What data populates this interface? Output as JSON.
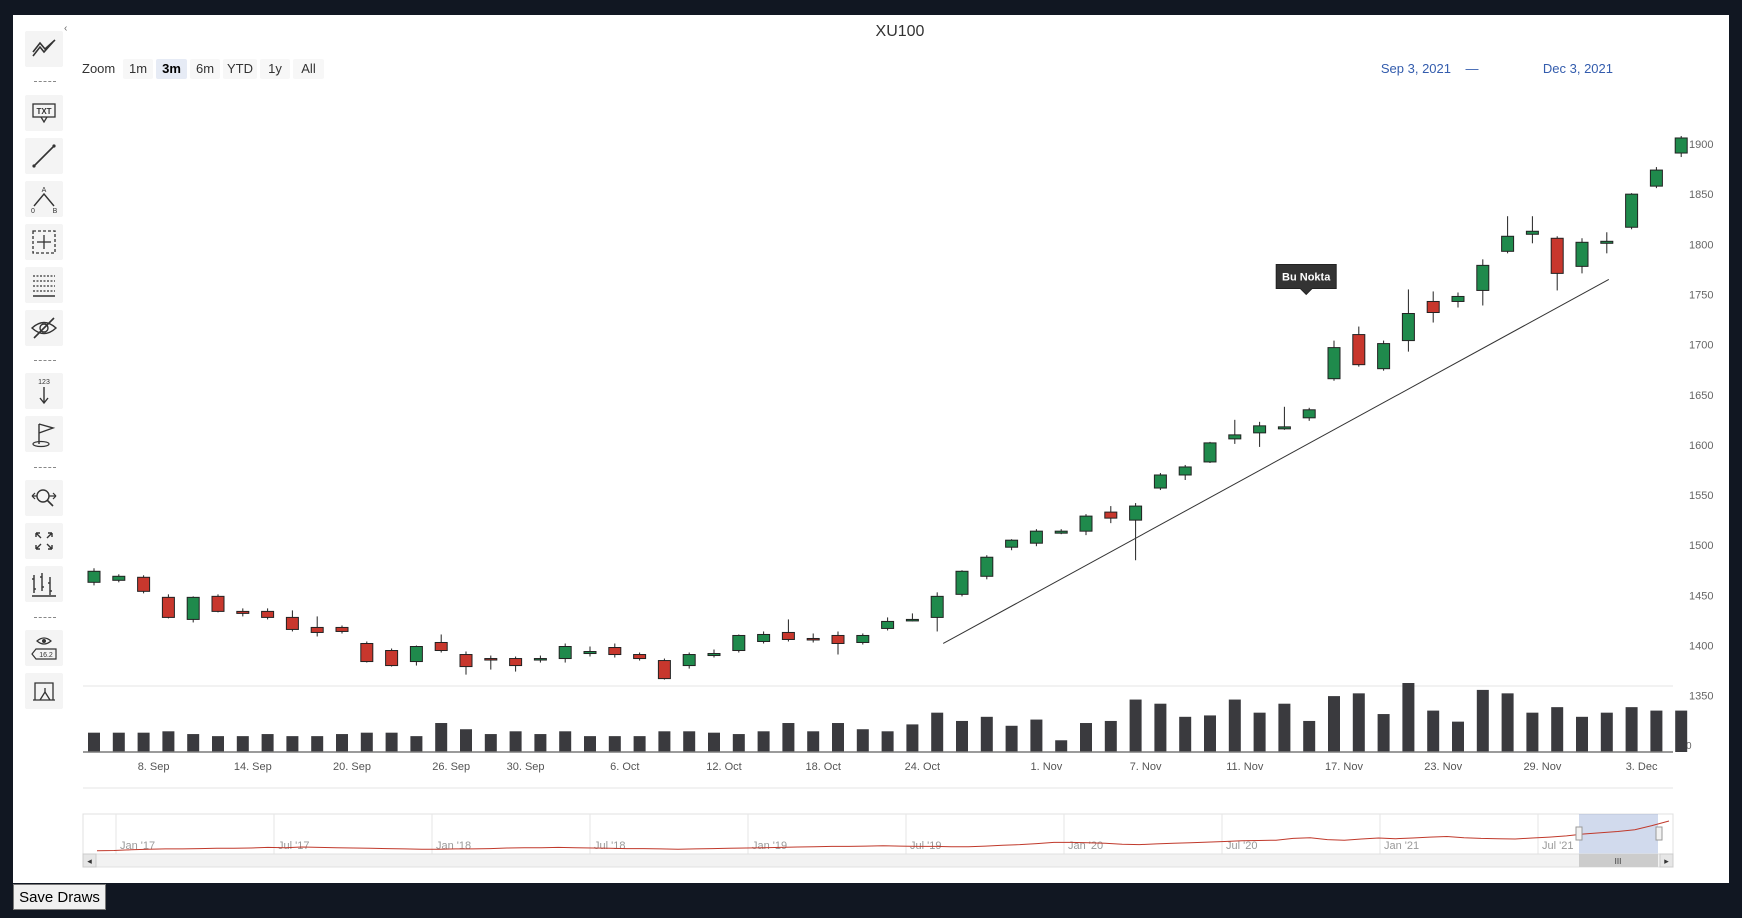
{
  "toolbar": {
    "collapse_glyph": "‹",
    "tools": [
      {
        "name": "indicators-icon"
      },
      {
        "name": "annotation-text-icon"
      },
      {
        "name": "line-tool-icon"
      },
      {
        "name": "abc-pattern-icon"
      },
      {
        "name": "measure-icon"
      },
      {
        "name": "fibonacci-icon"
      },
      {
        "name": "hide-annotations-icon"
      },
      {
        "name": "vertical-counter-icon"
      },
      {
        "name": "flag-icon"
      },
      {
        "name": "zoom-change-icon"
      },
      {
        "name": "fullscreen-icon"
      },
      {
        "name": "type-change-icon"
      },
      {
        "name": "current-price-icon"
      },
      {
        "name": "save-chart-icon"
      }
    ],
    "labels": {
      "txt": "TXT",
      "abc_a": "A",
      "abc_o": "0",
      "abc_b": "B",
      "counter": "123",
      "price": "16.2"
    }
  },
  "chart": {
    "title": "XU100",
    "zoom_label": "Zoom",
    "zoom_buttons": [
      "1m",
      "3m",
      "6m",
      "YTD",
      "1y",
      "All"
    ],
    "zoom_selected": "3m",
    "range_from": "Sep 3, 2021",
    "range_to": "Dec 3, 2021",
    "range_dash": "—",
    "annotation_label": "Bu Nokta",
    "navigator_labels": [
      "Jan '17",
      "Jul '17",
      "Jan '18",
      "Jul '18",
      "Jan '19",
      "Jul '19",
      "Jan '20",
      "Jul '20",
      "Jan '21",
      "Jul '21"
    ],
    "scroll_grip": "III"
  },
  "chart_data": {
    "type": "candlestick",
    "title": "XU100",
    "x_tick_labels": [
      "8. Sep",
      "14. Sep",
      "20. Sep",
      "26. Sep",
      "30. Sep",
      "6. Oct",
      "12. Oct",
      "18. Oct",
      "24. Oct",
      "1. Nov",
      "7. Nov",
      "11. Nov",
      "17. Nov",
      "23. Nov",
      "29. Nov",
      "3. Dec"
    ],
    "y_tick_labels": [
      "1350",
      "1400",
      "1450",
      "1500",
      "1550",
      "1600",
      "1650",
      "1700",
      "1750",
      "1800",
      "1850",
      "1900"
    ],
    "volume_axis_label": "0",
    "ylim": [
      1300,
      1900
    ],
    "colors": {
      "up": "#1f8a4c",
      "down": "#c8372d",
      "trendline": "#333333",
      "navigator_line": "#c0392b",
      "volume": "#3a3a3e"
    },
    "candles": [
      {
        "o": 1463,
        "h": 1477,
        "l": 1460,
        "c": 1474
      },
      {
        "o": 1465,
        "h": 1471,
        "l": 1463,
        "c": 1469
      },
      {
        "o": 1468,
        "h": 1470,
        "l": 1452,
        "c": 1454
      },
      {
        "o": 1448,
        "h": 1451,
        "l": 1427,
        "c": 1428
      },
      {
        "o": 1426,
        "h": 1449,
        "l": 1423,
        "c": 1448
      },
      {
        "o": 1449,
        "h": 1451,
        "l": 1433,
        "c": 1434
      },
      {
        "o": 1434,
        "h": 1437,
        "l": 1429,
        "c": 1432
      },
      {
        "o": 1434,
        "h": 1437,
        "l": 1426,
        "c": 1428
      },
      {
        "o": 1428,
        "h": 1435,
        "l": 1414,
        "c": 1416
      },
      {
        "o": 1418,
        "h": 1429,
        "l": 1409,
        "c": 1413
      },
      {
        "o": 1418,
        "h": 1420,
        "l": 1412,
        "c": 1414
      },
      {
        "o": 1402,
        "h": 1404,
        "l": 1383,
        "c": 1384
      },
      {
        "o": 1395,
        "h": 1397,
        "l": 1379,
        "c": 1380
      },
      {
        "o": 1384,
        "h": 1400,
        "l": 1380,
        "c": 1399
      },
      {
        "o": 1403,
        "h": 1411,
        "l": 1393,
        "c": 1395
      },
      {
        "o": 1391,
        "h": 1394,
        "l": 1371,
        "c": 1379
      },
      {
        "o": 1387,
        "h": 1390,
        "l": 1376,
        "c": 1386
      },
      {
        "o": 1387,
        "h": 1389,
        "l": 1374,
        "c": 1380
      },
      {
        "o": 1386,
        "h": 1390,
        "l": 1383,
        "c": 1387
      },
      {
        "o": 1387,
        "h": 1402,
        "l": 1383,
        "c": 1399
      },
      {
        "o": 1392,
        "h": 1399,
        "l": 1389,
        "c": 1394
      },
      {
        "o": 1398,
        "h": 1402,
        "l": 1388,
        "c": 1391
      },
      {
        "o": 1391,
        "h": 1393,
        "l": 1385,
        "c": 1387
      },
      {
        "o": 1385,
        "h": 1387,
        "l": 1366,
        "c": 1367
      },
      {
        "o": 1380,
        "h": 1393,
        "l": 1377,
        "c": 1391
      },
      {
        "o": 1390,
        "h": 1396,
        "l": 1388,
        "c": 1392
      },
      {
        "o": 1395,
        "h": 1411,
        "l": 1393,
        "c": 1410
      },
      {
        "o": 1404,
        "h": 1414,
        "l": 1402,
        "c": 1411
      },
      {
        "o": 1413,
        "h": 1426,
        "l": 1404,
        "c": 1406
      },
      {
        "o": 1407,
        "h": 1412,
        "l": 1403,
        "c": 1406
      },
      {
        "o": 1410,
        "h": 1414,
        "l": 1391,
        "c": 1402
      },
      {
        "o": 1403,
        "h": 1412,
        "l": 1401,
        "c": 1410
      },
      {
        "o": 1417,
        "h": 1428,
        "l": 1415,
        "c": 1424
      },
      {
        "o": 1426,
        "h": 1432,
        "l": 1424,
        "c": 1426
      },
      {
        "o": 1428,
        "h": 1453,
        "l": 1414,
        "c": 1449
      },
      {
        "o": 1451,
        "h": 1475,
        "l": 1449,
        "c": 1474
      },
      {
        "o": 1469,
        "h": 1490,
        "l": 1466,
        "c": 1488
      },
      {
        "o": 1498,
        "h": 1506,
        "l": 1495,
        "c": 1505
      },
      {
        "o": 1502,
        "h": 1516,
        "l": 1499,
        "c": 1514
      },
      {
        "o": 1512,
        "h": 1516,
        "l": 1511,
        "c": 1514
      },
      {
        "o": 1514,
        "h": 1531,
        "l": 1510,
        "c": 1529
      },
      {
        "o": 1533,
        "h": 1539,
        "l": 1522,
        "c": 1527
      },
      {
        "o": 1525,
        "h": 1542,
        "l": 1485,
        "c": 1539
      },
      {
        "o": 1557,
        "h": 1572,
        "l": 1555,
        "c": 1570
      },
      {
        "o": 1570,
        "h": 1580,
        "l": 1565,
        "c": 1578
      },
      {
        "o": 1583,
        "h": 1603,
        "l": 1582,
        "c": 1602
      },
      {
        "o": 1606,
        "h": 1625,
        "l": 1601,
        "c": 1610
      },
      {
        "o": 1612,
        "h": 1623,
        "l": 1598,
        "c": 1619
      },
      {
        "o": 1616,
        "h": 1638,
        "l": 1615,
        "c": 1618
      },
      {
        "o": 1627,
        "h": 1637,
        "l": 1624,
        "c": 1635
      },
      {
        "o": 1666,
        "h": 1704,
        "l": 1664,
        "c": 1697
      },
      {
        "o": 1710,
        "h": 1718,
        "l": 1678,
        "c": 1680
      },
      {
        "o": 1676,
        "h": 1704,
        "l": 1674,
        "c": 1701
      },
      {
        "o": 1704,
        "h": 1755,
        "l": 1693,
        "c": 1731
      },
      {
        "o": 1743,
        "h": 1753,
        "l": 1722,
        "c": 1732
      },
      {
        "o": 1743,
        "h": 1752,
        "l": 1737,
        "c": 1748
      },
      {
        "o": 1754,
        "h": 1785,
        "l": 1739,
        "c": 1779
      },
      {
        "o": 1793,
        "h": 1828,
        "l": 1791,
        "c": 1808
      },
      {
        "o": 1810,
        "h": 1828,
        "l": 1801,
        "c": 1813
      },
      {
        "o": 1806,
        "h": 1808,
        "l": 1754,
        "c": 1771
      },
      {
        "o": 1778,
        "h": 1806,
        "l": 1771,
        "c": 1802
      },
      {
        "o": 1801,
        "h": 1812,
        "l": 1791,
        "c": 1803
      },
      {
        "o": 1817,
        "h": 1851,
        "l": 1815,
        "c": 1850
      },
      {
        "o": 1858,
        "h": 1877,
        "l": 1856,
        "c": 1874
      },
      {
        "o": 1891,
        "h": 1908,
        "l": 1887,
        "c": 1906
      }
    ],
    "volume_relative": [
      0.28,
      0.28,
      0.28,
      0.3,
      0.26,
      0.23,
      0.23,
      0.26,
      0.23,
      0.23,
      0.26,
      0.28,
      0.28,
      0.23,
      0.42,
      0.33,
      0.26,
      0.3,
      0.26,
      0.3,
      0.23,
      0.23,
      0.23,
      0.3,
      0.3,
      0.28,
      0.26,
      0.3,
      0.42,
      0.3,
      0.42,
      0.33,
      0.3,
      0.4,
      0.57,
      0.45,
      0.51,
      0.38,
      0.47,
      0.17,
      0.42,
      0.45,
      0.76,
      0.7,
      0.51,
      0.53,
      0.76,
      0.57,
      0.7,
      0.45,
      0.81,
      0.85,
      0.55,
      1.0,
      0.6,
      0.44,
      0.9,
      0.85,
      0.57,
      0.65,
      0.51,
      0.57,
      0.65,
      0.6,
      0.6
    ],
    "trendline": [
      {
        "i": 34,
        "v": 1402
      },
      {
        "i": 61,
        "v": 1765
      }
    ],
    "annotation": {
      "i": 49,
      "v": 1750,
      "text": "Bu Nokta"
    },
    "navigator_series": [
      0.04,
      0.05,
      0.07,
      0.09,
      0.1,
      0.1,
      0.11,
      0.12,
      0.12,
      0.13,
      0.15,
      0.14,
      0.16,
      0.15,
      0.14,
      0.13,
      0.12,
      0.11,
      0.1,
      0.09,
      0.09,
      0.1,
      0.1,
      0.11,
      0.13,
      0.14,
      0.14,
      0.15,
      0.14,
      0.13,
      0.12,
      0.11,
      0.11,
      0.1,
      0.09,
      0.1,
      0.11,
      0.12,
      0.13,
      0.14,
      0.15,
      0.16,
      0.17,
      0.18,
      0.18,
      0.19,
      0.2,
      0.19,
      0.18,
      0.18,
      0.17,
      0.17,
      0.19,
      0.22,
      0.24,
      0.27,
      0.31,
      0.31,
      0.3,
      0.28,
      0.25,
      0.24,
      0.26,
      0.28,
      0.3,
      0.32,
      0.34,
      0.36,
      0.37,
      0.38,
      0.44,
      0.46,
      0.4,
      0.38,
      0.42,
      0.45,
      0.43,
      0.45,
      0.48,
      0.5,
      0.46,
      0.44,
      0.43,
      0.42,
      0.45,
      0.48,
      0.52,
      0.58,
      0.62,
      0.66,
      0.72,
      0.85,
      1.0
    ]
  },
  "save_button": {
    "label": "Save Draws"
  }
}
